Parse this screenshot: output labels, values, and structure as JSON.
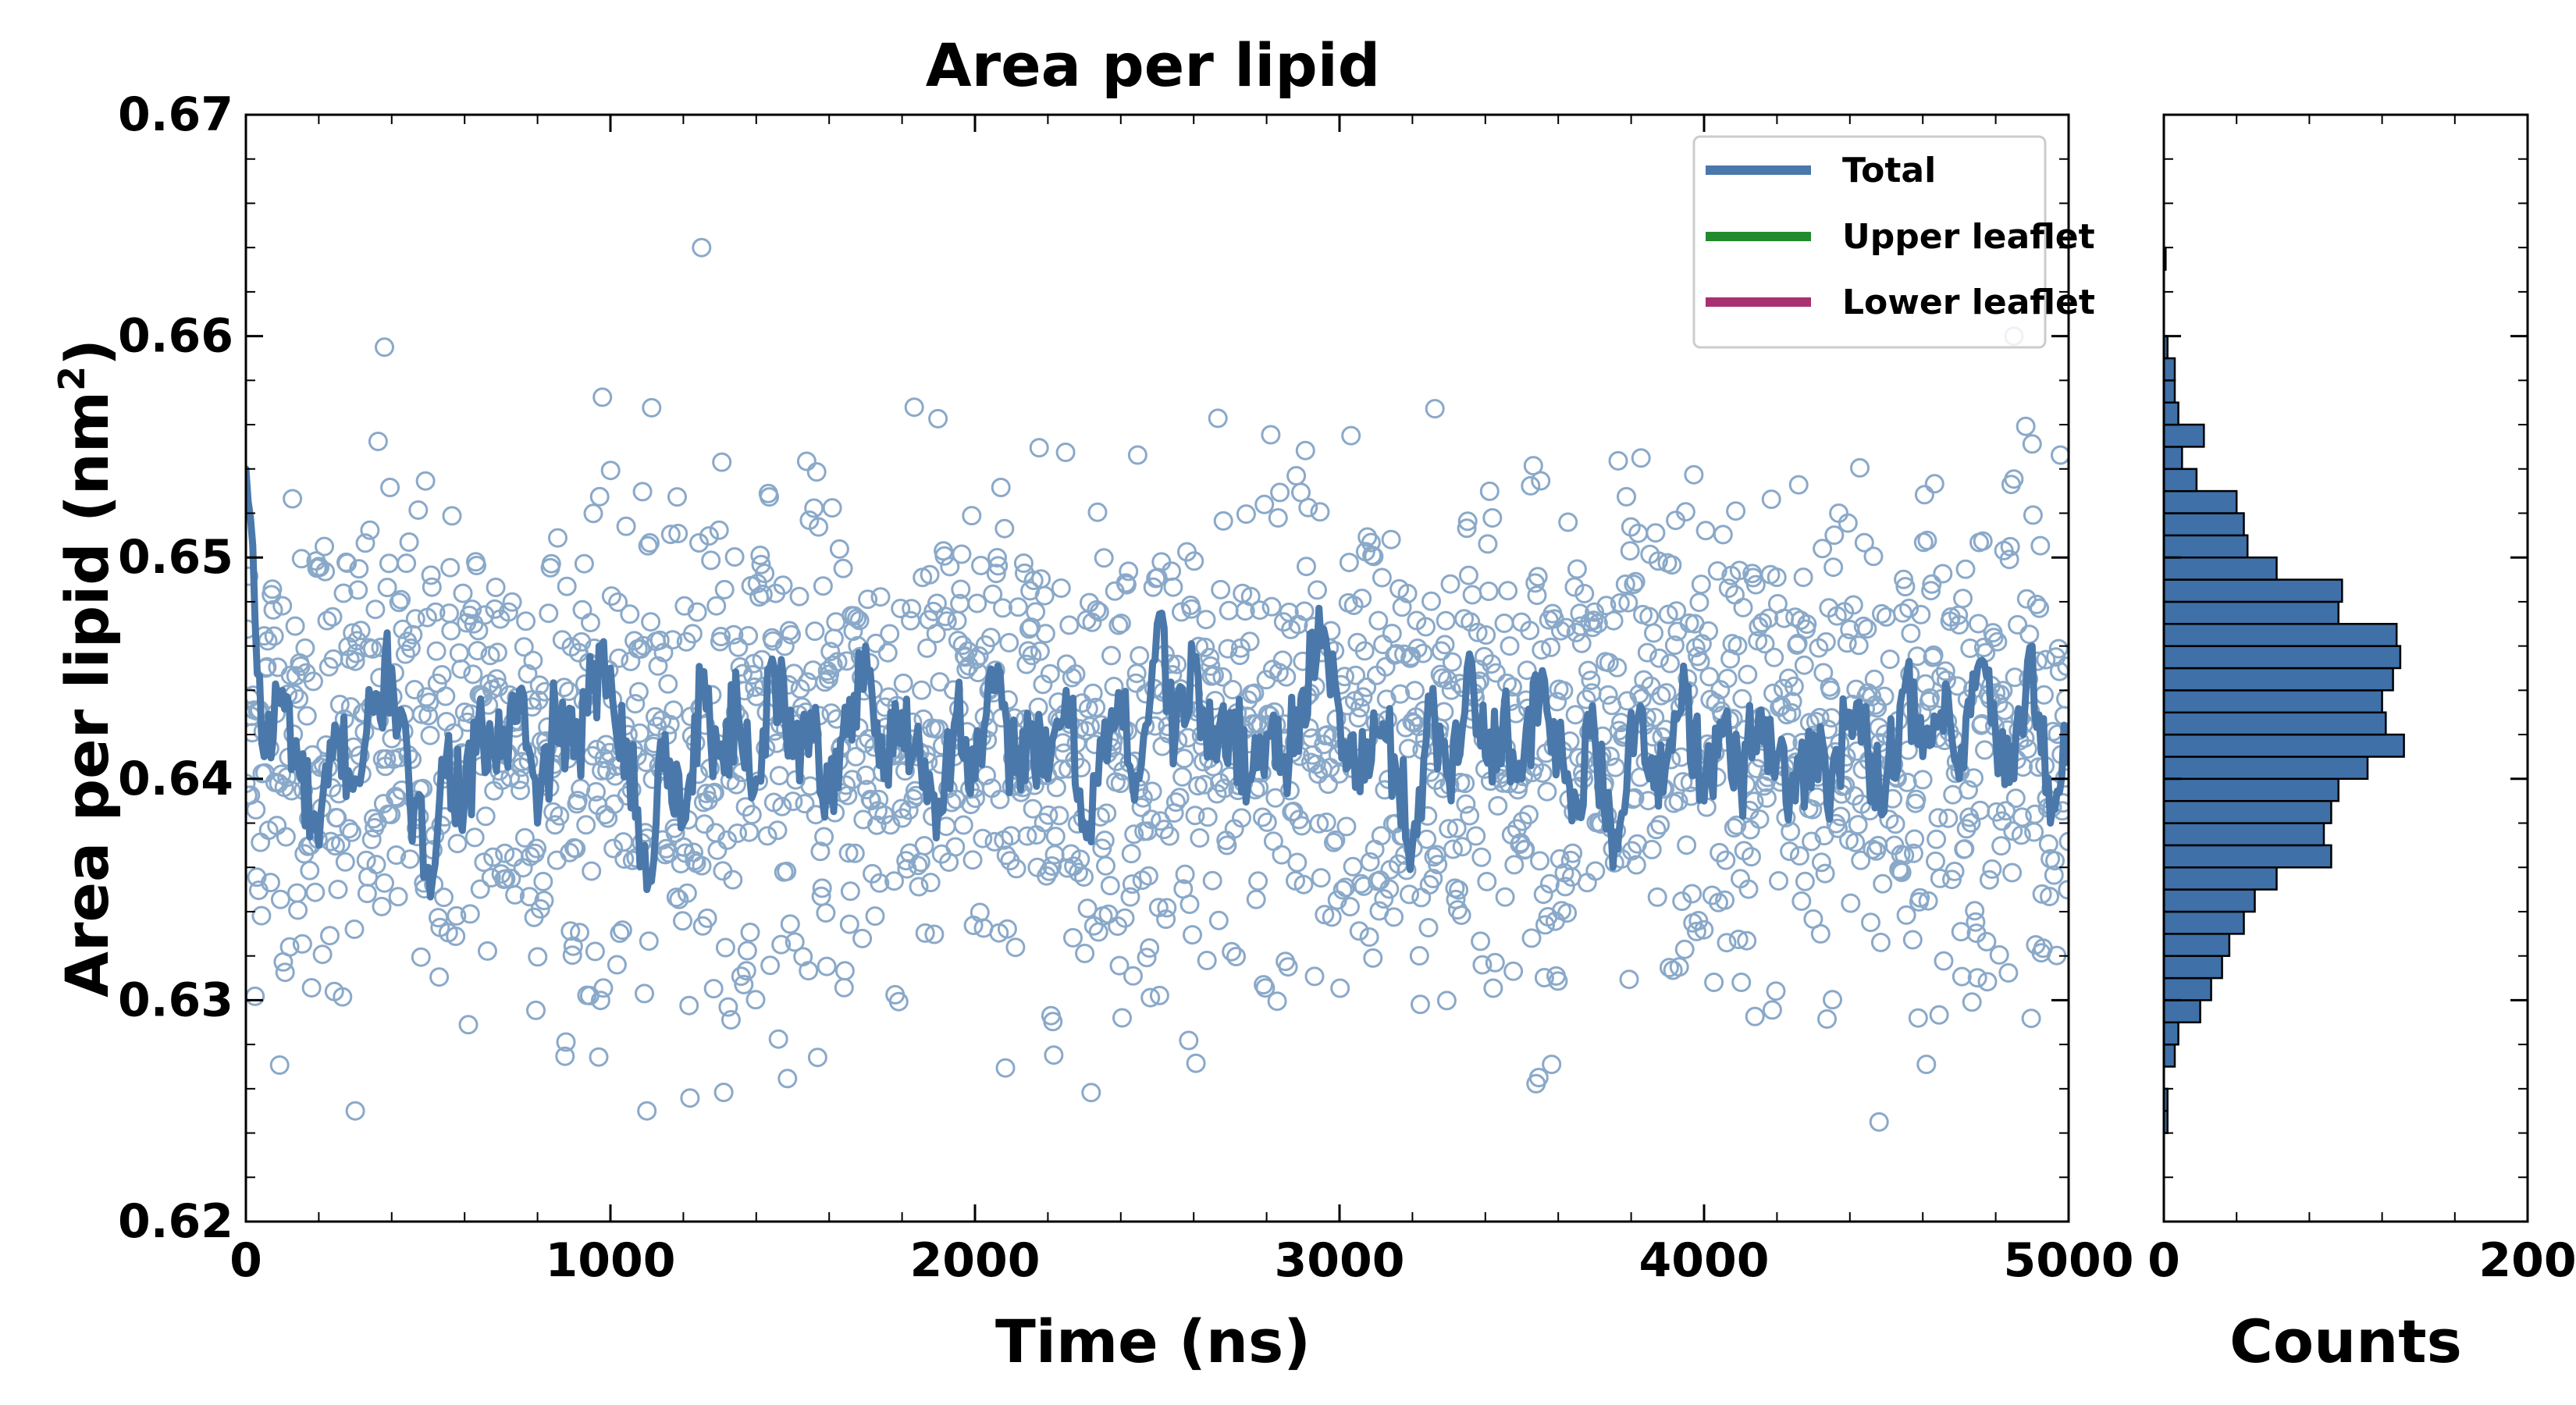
{
  "title": "Area per lipid",
  "main_axes": {
    "xlabel": "Time (ns)",
    "ylabel_main": "Area per lipid (nm",
    "ylabel_sup": "2",
    "ylabel_close": ")",
    "xticks": [
      "0",
      "1000",
      "2000",
      "3000",
      "4000",
      "5000"
    ],
    "yticks": [
      "0.62",
      "0.63",
      "0.64",
      "0.65",
      "0.66",
      "0.67"
    ]
  },
  "hist_axes": {
    "xlabel": "Counts",
    "xticks": [
      "0",
      "200"
    ]
  },
  "legend": {
    "items": [
      {
        "label": "Total",
        "color": "#4a78aa"
      },
      {
        "label": "Upper leaflet",
        "color": "#238b2e"
      },
      {
        "label": "Lower leaflet",
        "color": "#a8316f"
      }
    ]
  },
  "colors": {
    "scatter_edge": "#8aa9c9",
    "line": "#4a78aa",
    "hist_fill": "#3f70a8",
    "hist_edge": "#000000"
  },
  "chart_data": [
    {
      "type": "scatter",
      "xlim": [
        0,
        5000
      ],
      "ylim": [
        0.62,
        0.67
      ],
      "n_points": 2000,
      "x_range": [
        0,
        5000
      ],
      "y_mean": 0.6415,
      "y_std": 0.0055,
      "marker": "open circle",
      "note_points": [
        [
          1250,
          0.664
        ],
        [
          380,
          0.6595
        ],
        [
          4850,
          0.66
        ],
        [
          4480,
          0.6245
        ],
        [
          1100,
          0.625
        ],
        [
          300,
          0.625
        ]
      ]
    },
    {
      "type": "line",
      "series": [
        {
          "name": "Total",
          "x": [
            0,
            50,
            100,
            150,
            200,
            250,
            300,
            350,
            400,
            450,
            500,
            550,
            600,
            650,
            700,
            750,
            800,
            850,
            900,
            950,
            1000,
            1050,
            1100,
            1150,
            1200,
            1250,
            1300,
            1350,
            1400,
            1450,
            1500,
            1550,
            1600,
            1650,
            1700,
            1750,
            1800,
            1850,
            1900,
            1950,
            2000,
            2050,
            2100,
            2150,
            2200,
            2250,
            2300,
            2350,
            2400,
            2450,
            2500,
            2550,
            2600,
            2650,
            2700,
            2750,
            2800,
            2850,
            2900,
            2950,
            3000,
            3050,
            3100,
            3150,
            3200,
            3250,
            3300,
            3350,
            3400,
            3450,
            3500,
            3550,
            3600,
            3650,
            3700,
            3750,
            3800,
            3850,
            3900,
            3950,
            4000,
            4050,
            4100,
            4150,
            4200,
            4250,
            4300,
            4350,
            4400,
            4450,
            4500,
            4550,
            4600,
            4650,
            4700,
            4750,
            4800,
            4850,
            4900,
            4950,
            5000
          ],
          "y": [
            0.654,
            0.641,
            0.644,
            0.64,
            0.637,
            0.642,
            0.64,
            0.643,
            0.645,
            0.639,
            0.636,
            0.641,
            0.639,
            0.642,
            0.641,
            0.644,
            0.638,
            0.643,
            0.641,
            0.644,
            0.645,
            0.641,
            0.635,
            0.642,
            0.638,
            0.644,
            0.641,
            0.643,
            0.64,
            0.645,
            0.641,
            0.643,
            0.639,
            0.642,
            0.646,
            0.64,
            0.643,
            0.641,
            0.639,
            0.643,
            0.64,
            0.644,
            0.641,
            0.642,
            0.64,
            0.644,
            0.638,
            0.641,
            0.643,
            0.64,
            0.647,
            0.642,
            0.645,
            0.641,
            0.643,
            0.64,
            0.642,
            0.641,
            0.644,
            0.646,
            0.643,
            0.64,
            0.642,
            0.641,
            0.637,
            0.643,
            0.64,
            0.645,
            0.641,
            0.643,
            0.64,
            0.644,
            0.641,
            0.639,
            0.642,
            0.636,
            0.643,
            0.64,
            0.641,
            0.644,
            0.639,
            0.642,
            0.64,
            0.643,
            0.641,
            0.639,
            0.642,
            0.64,
            0.643,
            0.641,
            0.64,
            0.644,
            0.641,
            0.643,
            0.64,
            0.645,
            0.642,
            0.64,
            0.646,
            0.638,
            0.642
          ]
        }
      ]
    },
    {
      "type": "bar",
      "orientation": "horizontal",
      "ylim": [
        0.62,
        0.67
      ],
      "xlim": [
        0,
        200
      ],
      "bin_width": 0.001,
      "bin_starts": [
        0.624,
        0.625,
        0.626,
        0.627,
        0.628,
        0.629,
        0.63,
        0.631,
        0.632,
        0.633,
        0.634,
        0.635,
        0.636,
        0.637,
        0.638,
        0.639,
        0.64,
        0.641,
        0.642,
        0.643,
        0.644,
        0.645,
        0.646,
        0.647,
        0.648,
        0.649,
        0.65,
        0.651,
        0.652,
        0.653,
        0.654,
        0.655,
        0.656,
        0.657,
        0.658,
        0.659,
        0.663
      ],
      "counts": [
        2,
        2,
        0,
        6,
        8,
        20,
        26,
        32,
        36,
        44,
        50,
        62,
        92,
        88,
        92,
        96,
        112,
        132,
        122,
        120,
        126,
        130,
        128,
        96,
        98,
        62,
        46,
        44,
        40,
        18,
        10,
        22,
        8,
        6,
        6,
        2,
        1
      ]
    }
  ]
}
